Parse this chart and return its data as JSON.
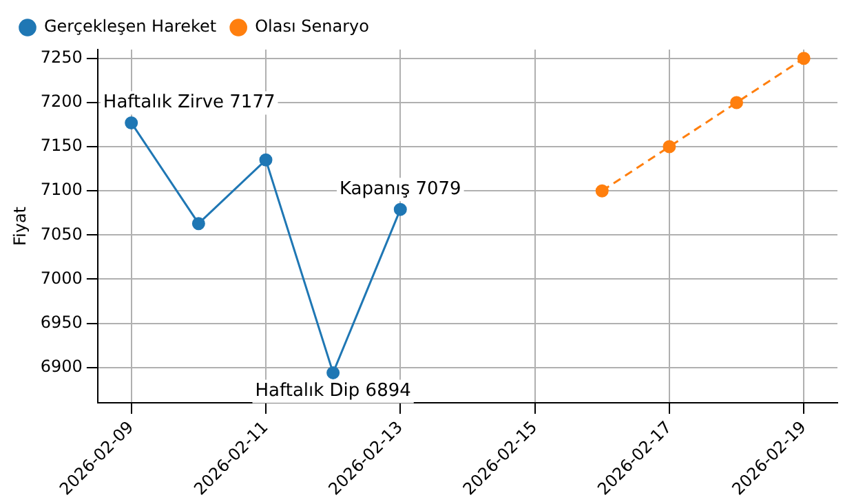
{
  "chart_data": {
    "type": "line",
    "ylabel": "Fiyat",
    "marker": "circle",
    "grid": true,
    "legend": "top left",
    "xlim": [
      "2026-02-08T12:00",
      "2026-02-19T12:00"
    ],
    "xticks": [
      "2026-02-09",
      "2026-02-11",
      "2026-02-13",
      "2026-02-15",
      "2026-02-17",
      "2026-02-19"
    ],
    "ylim": [
      6860,
      7260
    ],
    "yticks": [
      6900,
      6950,
      7000,
      7050,
      7100,
      7150,
      7200,
      7250
    ],
    "series": [
      {
        "name": "Gerçekleşen Hareket",
        "color": "#1f77b4",
        "line_style": "solid",
        "x": [
          "2026-02-09",
          "2026-02-10",
          "2026-02-11",
          "2026-02-12",
          "2026-02-13"
        ],
        "values": [
          7177,
          7063,
          7135,
          6894,
          7079
        ]
      },
      {
        "name": "Olası Senaryo",
        "color": "#ff7f0e",
        "line_style": "dashed",
        "x": [
          "2026-02-16",
          "2026-02-17",
          "2026-02-18",
          "2026-02-19"
        ],
        "values": [
          7100,
          7150,
          7200,
          7250
        ]
      }
    ],
    "annotations": [
      {
        "text": "Haftalık Zirve 7177",
        "x": "2026-02-09",
        "y": 7177
      },
      {
        "text": "Haftalık Dip 6894",
        "x": "2026-02-12",
        "y": 6894
      },
      {
        "text": "Kapanış 7079",
        "x": "2026-02-13",
        "y": 7079
      }
    ]
  }
}
